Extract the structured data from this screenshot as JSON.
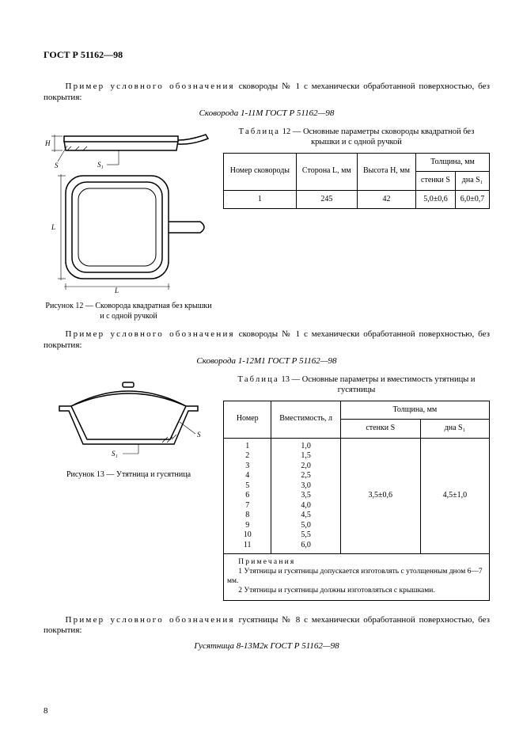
{
  "page": {
    "standard_header": "ГОСТ Р 51162—98",
    "page_number": "8"
  },
  "section1": {
    "para_label": "Пример условного обозначения",
    "para_rest": " сковороды № 1 с механически обработанной поверхностью, без покрытия:",
    "designation": "Сковорода 1-11М ГОСТ Р 51162—98",
    "fig_caption": "Рисунок 12 — Сковорода квадратная без крышки и с одной ручкой",
    "table_caption_label": "Таблица",
    "table_caption_rest": " 12 — Основные параметры сковороды квадратной без крышки и с одной ручкой",
    "table": {
      "headers": {
        "c1": "Номер сковороды",
        "c2": "Сторона L, мм",
        "c3": "Высота H, мм",
        "c4_group": "Толщина, мм",
        "c4a": "стенки S",
        "c4b": "дна S₁"
      },
      "row": {
        "c1": "1",
        "c2": "245",
        "c3": "42",
        "c4a": "5,0±0,6",
        "c4b": "6,0±0,7"
      }
    },
    "drawing_labels": {
      "H": "H",
      "S": "S",
      "S1": "S₁",
      "L": "L"
    }
  },
  "section2": {
    "para_label": "Пример условного обозначения",
    "para_rest": "  сковороды  № 1 с механически обработанной поверхностью, без покрытия:",
    "designation": "Сковорода 1-12М1 ГОСТ Р 51162—98",
    "fig_caption": "Рисунок 13 — Утятница и гусятница",
    "table_caption_label": "Таблица",
    "table_caption_rest": " 13 — Основные параметры и вместимость утятницы и гусятницы",
    "table": {
      "headers": {
        "c1": "Номер",
        "c2": "Вместимость, л",
        "c3_group": "Толщина, мм",
        "c3a": "стенки S",
        "c3b": "дна S₁"
      },
      "rows": [
        {
          "n": "1",
          "v": "1,0"
        },
        {
          "n": "2",
          "v": "1,5"
        },
        {
          "n": "3",
          "v": "2,0"
        },
        {
          "n": "4",
          "v": "2,5"
        },
        {
          "n": "5",
          "v": "3,0"
        },
        {
          "n": "6",
          "v": "3,5"
        },
        {
          "n": "7",
          "v": "4,0"
        },
        {
          "n": "8",
          "v": "4,5"
        },
        {
          "n": "9",
          "v": "5,0"
        },
        {
          "n": "10",
          "v": "5,5"
        },
        {
          "n": "11",
          "v": "6,0"
        }
      ],
      "s": "3,5±0,6",
      "s1": "4,5±1,0",
      "notes_label": "Примечания",
      "note1": "1 Утятницы и гусятницы допускается изготовлять с утолщенным дном 6—7 мм.",
      "note2": "2 Утятницы и гусятницы должны изготовляться с крышками."
    },
    "drawing_labels": {
      "S": "S",
      "S1": "S₁"
    }
  },
  "section3": {
    "para_label": "Пример условного обозначения",
    "para_rest": "  гусятницы № 8 с механически обработанной поверхностью, без покрытия:",
    "designation": "Гусятница 8-13М2к ГОСТ Р 51162—98"
  }
}
